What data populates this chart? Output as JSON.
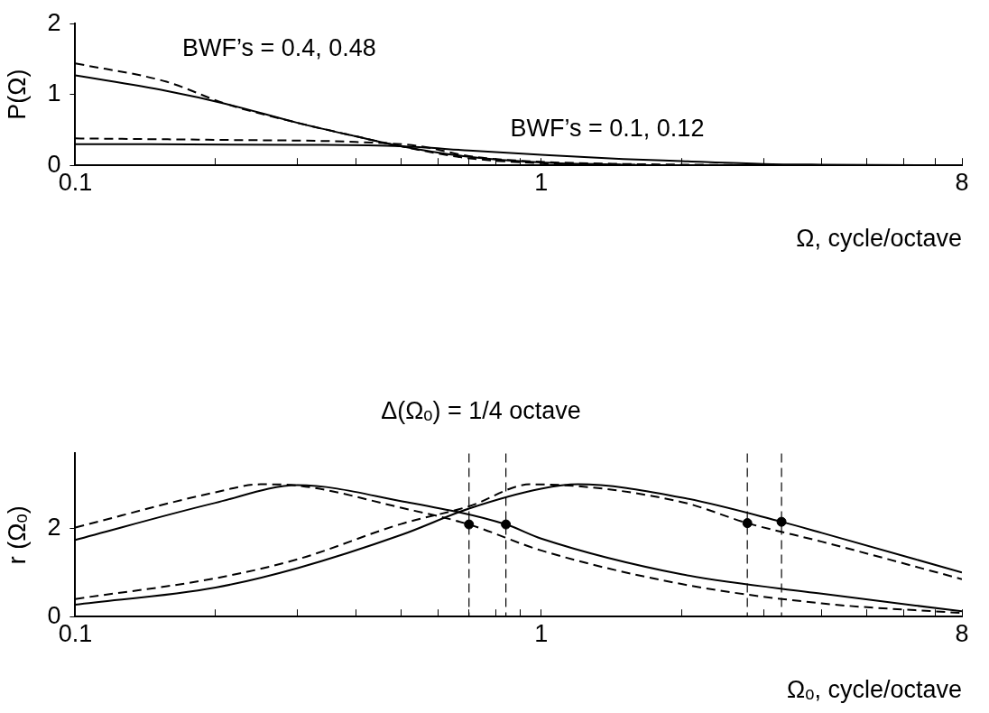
{
  "chart_data": [
    {
      "type": "line",
      "ylabel": "P(Ω)",
      "xlabel": "Ω, cycle/octave",
      "log": "x",
      "xlim": [
        0.1,
        8
      ],
      "ylim": [
        0,
        2
      ],
      "xticks": [
        0.1,
        {
          "value": 0.2,
          "label": null
        },
        {
          "value": 0.3,
          "label": null
        },
        {
          "value": 0.4,
          "label": null
        },
        {
          "value": 0.5,
          "label": null
        },
        {
          "value": 0.6,
          "label": null
        },
        {
          "value": 0.7,
          "label": null
        },
        {
          "value": 0.8,
          "label": null
        },
        {
          "value": 0.9,
          "label": null
        },
        1,
        {
          "value": 2,
          "label": null
        },
        {
          "value": 3,
          "label": null
        },
        {
          "value": 4,
          "label": null
        },
        {
          "value": 5,
          "label": null
        },
        {
          "value": 6,
          "label": null
        },
        {
          "value": 7,
          "label": null
        },
        8
      ],
      "yticks": [
        0,
        1,
        2
      ],
      "legend": false,
      "marker": "none",
      "annotations": [
        "BWF’s = 0.4, 0.48",
        "BWF’s = 0.1, 0.12"
      ],
      "series": [
        {
          "color": "#000000",
          "line_style": "dashed",
          "x": [
            0.1,
            0.157,
            0.21,
            0.3,
            0.4,
            0.5,
            0.68,
            1,
            1.5,
            2,
            4,
            8
          ],
          "values": [
            1.44,
            1.18,
            0.87,
            0.6,
            0.41,
            0.27,
            0.11,
            0.03,
            0.01,
            0,
            0,
            0
          ]
        },
        {
          "color": "#000000",
          "line_style": "solid",
          "x": [
            0.1,
            0.157,
            0.21,
            0.3,
            0.4,
            0.5,
            0.68,
            1,
            1.5,
            2,
            4,
            8
          ],
          "values": [
            1.27,
            1.05,
            0.87,
            0.6,
            0.41,
            0.27,
            0.13,
            0.04,
            0.01,
            0,
            0,
            0
          ]
        },
        {
          "color": "#000000",
          "line_style": "dashed",
          "x": [
            0.1,
            0.2,
            0.4,
            0.55,
            0.7,
            1,
            1.5,
            2,
            4,
            8
          ],
          "values": [
            0.38,
            0.36,
            0.33,
            0.27,
            0.13,
            0.05,
            0.02,
            0.01,
            0,
            0
          ]
        },
        {
          "color": "#000000",
          "line_style": "solid",
          "x": [
            0.1,
            0.3,
            0.5,
            0.7,
            1,
            1.5,
            2,
            3,
            4,
            8
          ],
          "values": [
            0.3,
            0.29,
            0.27,
            0.21,
            0.15,
            0.09,
            0.06,
            0.02,
            0.01,
            0
          ]
        }
      ]
    },
    {
      "type": "line",
      "title": "Δ(Ωₒ) = 1/4 octave",
      "ylabel": "r (Ωₒ)",
      "xlabel": "Ωₒ, cycle/octave",
      "log": "x",
      "xlim": [
        0.1,
        8
      ],
      "ylim": [
        0,
        3.7
      ],
      "xticks": [
        0.1,
        {
          "value": 0.2,
          "label": null
        },
        {
          "value": 0.3,
          "label": null
        },
        {
          "value": 0.4,
          "label": null
        },
        {
          "value": 0.5,
          "label": null
        },
        {
          "value": 0.6,
          "label": null
        },
        {
          "value": 0.7,
          "label": null
        },
        {
          "value": 0.8,
          "label": null
        },
        {
          "value": 0.9,
          "label": null
        },
        1,
        {
          "value": 2,
          "label": null
        },
        {
          "value": 3,
          "label": null
        },
        {
          "value": 4,
          "label": null
        },
        {
          "value": 5,
          "label": null
        },
        {
          "value": 6,
          "label": null
        },
        {
          "value": 7,
          "label": null
        },
        8
      ],
      "yticks": [
        0,
        2
      ],
      "legend": false,
      "marker": "none",
      "ref_lines": [
        {
          "axis": "x",
          "value": 0.7,
          "line_style": "dashed"
        },
        {
          "axis": "x",
          "value": 0.84,
          "line_style": "dashed"
        },
        {
          "axis": "x",
          "value": 2.77,
          "line_style": "dashed"
        },
        {
          "axis": "x",
          "value": 3.28,
          "line_style": "dashed"
        }
      ],
      "series": [
        {
          "color": "#000000",
          "line_style": "solid",
          "x": [
            0.1,
            0.2,
            0.3,
            0.5,
            0.84,
            1,
            2,
            4,
            8
          ],
          "values": [
            1.74,
            2.58,
            2.98,
            2.62,
            2.09,
            1.77,
            0.96,
            0.52,
            0.12
          ]
        },
        {
          "color": "#000000",
          "line_style": "dashed",
          "x": [
            0.1,
            0.2,
            0.25,
            0.3,
            0.5,
            0.7,
            1,
            2,
            4,
            8
          ],
          "values": [
            2.02,
            2.82,
            3.0,
            2.97,
            2.47,
            2.09,
            1.5,
            0.74,
            0.3,
            0.08
          ]
        },
        {
          "color": "#000000",
          "line_style": "solid",
          "x": [
            0.1,
            0.2,
            0.3,
            0.5,
            0.7,
            1,
            1.2,
            2,
            3.28,
            4,
            8
          ],
          "values": [
            0.27,
            0.66,
            1.1,
            1.85,
            2.45,
            2.9,
            3.0,
            2.7,
            2.15,
            1.9,
            1.0
          ]
        },
        {
          "color": "#000000",
          "line_style": "dashed",
          "x": [
            0.1,
            0.2,
            0.3,
            0.5,
            0.7,
            0.95,
            2,
            2.77,
            4,
            8
          ],
          "values": [
            0.4,
            0.87,
            1.3,
            2.1,
            2.5,
            3.0,
            2.6,
            2.12,
            1.7,
            0.85
          ]
        },
        {
          "type": "scatter",
          "marker": "circle",
          "color": "#000000",
          "x": [
            0.7,
            0.84,
            2.77,
            3.28
          ],
          "values": [
            2.09,
            2.09,
            2.12,
            2.15
          ]
        }
      ]
    }
  ]
}
